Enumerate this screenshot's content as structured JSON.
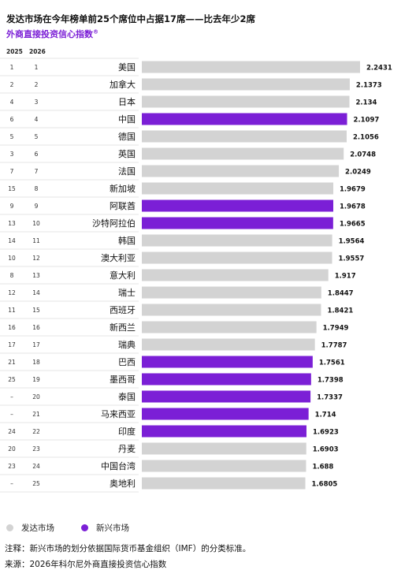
{
  "header": {
    "title": "发达市场在今年榜单前25个席位中占据17席——比去年少2席",
    "subtitle": "外商直接投资信心指数",
    "subtitle_mark": "®",
    "col_2025": "2025",
    "col_2026": "2026"
  },
  "colors": {
    "developed": "#d3d3d3",
    "emerging": "#7b1fd6"
  },
  "legend": {
    "developed": "发达市场",
    "emerging": "新兴市场"
  },
  "footer": {
    "note": "注释：新兴市场的划分依据国际货币基金组织（IMF）的分类标准。",
    "source": "来源：2026年科尔尼外商直接投资信心指数"
  },
  "chart_data": {
    "type": "bar",
    "orientation": "horizontal",
    "xlim": [
      0,
      2.2431
    ],
    "rows": [
      {
        "rank_2025": "1",
        "rank_2026": "1",
        "country": "美国",
        "value": 2.2431,
        "value_label": "2.2431",
        "group": "developed"
      },
      {
        "rank_2025": "2",
        "rank_2026": "2",
        "country": "加拿大",
        "value": 2.1373,
        "value_label": "2.1373",
        "group": "developed"
      },
      {
        "rank_2025": "4",
        "rank_2026": "3",
        "country": "日本",
        "value": 2.134,
        "value_label": "2.134",
        "group": "developed"
      },
      {
        "rank_2025": "6",
        "rank_2026": "4",
        "country": "中国",
        "value": 2.1097,
        "value_label": "2.1097",
        "group": "emerging"
      },
      {
        "rank_2025": "5",
        "rank_2026": "5",
        "country": "德国",
        "value": 2.1056,
        "value_label": "2.1056",
        "group": "developed"
      },
      {
        "rank_2025": "3",
        "rank_2026": "6",
        "country": "英国",
        "value": 2.0748,
        "value_label": "2.0748",
        "group": "developed"
      },
      {
        "rank_2025": "7",
        "rank_2026": "7",
        "country": "法国",
        "value": 2.0249,
        "value_label": "2.0249",
        "group": "developed"
      },
      {
        "rank_2025": "15",
        "rank_2026": "8",
        "country": "新加坡",
        "value": 1.9679,
        "value_label": "1.9679",
        "group": "developed"
      },
      {
        "rank_2025": "9",
        "rank_2026": "9",
        "country": "阿联酋",
        "value": 1.9678,
        "value_label": "1.9678",
        "group": "emerging"
      },
      {
        "rank_2025": "13",
        "rank_2026": "10",
        "country": "沙特阿拉伯",
        "value": 1.9665,
        "value_label": "1.9665",
        "group": "emerging"
      },
      {
        "rank_2025": "14",
        "rank_2026": "11",
        "country": "韩国",
        "value": 1.9564,
        "value_label": "1.9564",
        "group": "developed"
      },
      {
        "rank_2025": "10",
        "rank_2026": "12",
        "country": "澳大利亚",
        "value": 1.9557,
        "value_label": "1.9557",
        "group": "developed"
      },
      {
        "rank_2025": "8",
        "rank_2026": "13",
        "country": "意大利",
        "value": 1.917,
        "value_label": "1.917",
        "group": "developed"
      },
      {
        "rank_2025": "12",
        "rank_2026": "14",
        "country": "瑞士",
        "value": 1.8447,
        "value_label": "1.8447",
        "group": "developed"
      },
      {
        "rank_2025": "11",
        "rank_2026": "15",
        "country": "西班牙",
        "value": 1.8421,
        "value_label": "1.8421",
        "group": "developed"
      },
      {
        "rank_2025": "16",
        "rank_2026": "16",
        "country": "新西兰",
        "value": 1.7949,
        "value_label": "1.7949",
        "group": "developed"
      },
      {
        "rank_2025": "17",
        "rank_2026": "17",
        "country": "瑞典",
        "value": 1.7787,
        "value_label": "1.7787",
        "group": "developed"
      },
      {
        "rank_2025": "21",
        "rank_2026": "18",
        "country": "巴西",
        "value": 1.7561,
        "value_label": "1.7561",
        "group": "emerging"
      },
      {
        "rank_2025": "25",
        "rank_2026": "19",
        "country": "墨西哥",
        "value": 1.7398,
        "value_label": "1.7398",
        "group": "emerging"
      },
      {
        "rank_2025": "–",
        "rank_2026": "20",
        "country": "泰国",
        "value": 1.7337,
        "value_label": "1.7337",
        "group": "emerging"
      },
      {
        "rank_2025": "–",
        "rank_2026": "21",
        "country": "马来西亚",
        "value": 1.714,
        "value_label": "1.714",
        "group": "emerging"
      },
      {
        "rank_2025": "24",
        "rank_2026": "22",
        "country": "印度",
        "value": 1.6923,
        "value_label": "1.6923",
        "group": "emerging"
      },
      {
        "rank_2025": "20",
        "rank_2026": "23",
        "country": "丹麦",
        "value": 1.6903,
        "value_label": "1.6903",
        "group": "developed"
      },
      {
        "rank_2025": "23",
        "rank_2026": "24",
        "country": "中国台湾",
        "value": 1.688,
        "value_label": "1.688",
        "group": "developed"
      },
      {
        "rank_2025": "–",
        "rank_2026": "25",
        "country": "奥地利",
        "value": 1.6805,
        "value_label": "1.6805",
        "group": "developed"
      }
    ]
  }
}
